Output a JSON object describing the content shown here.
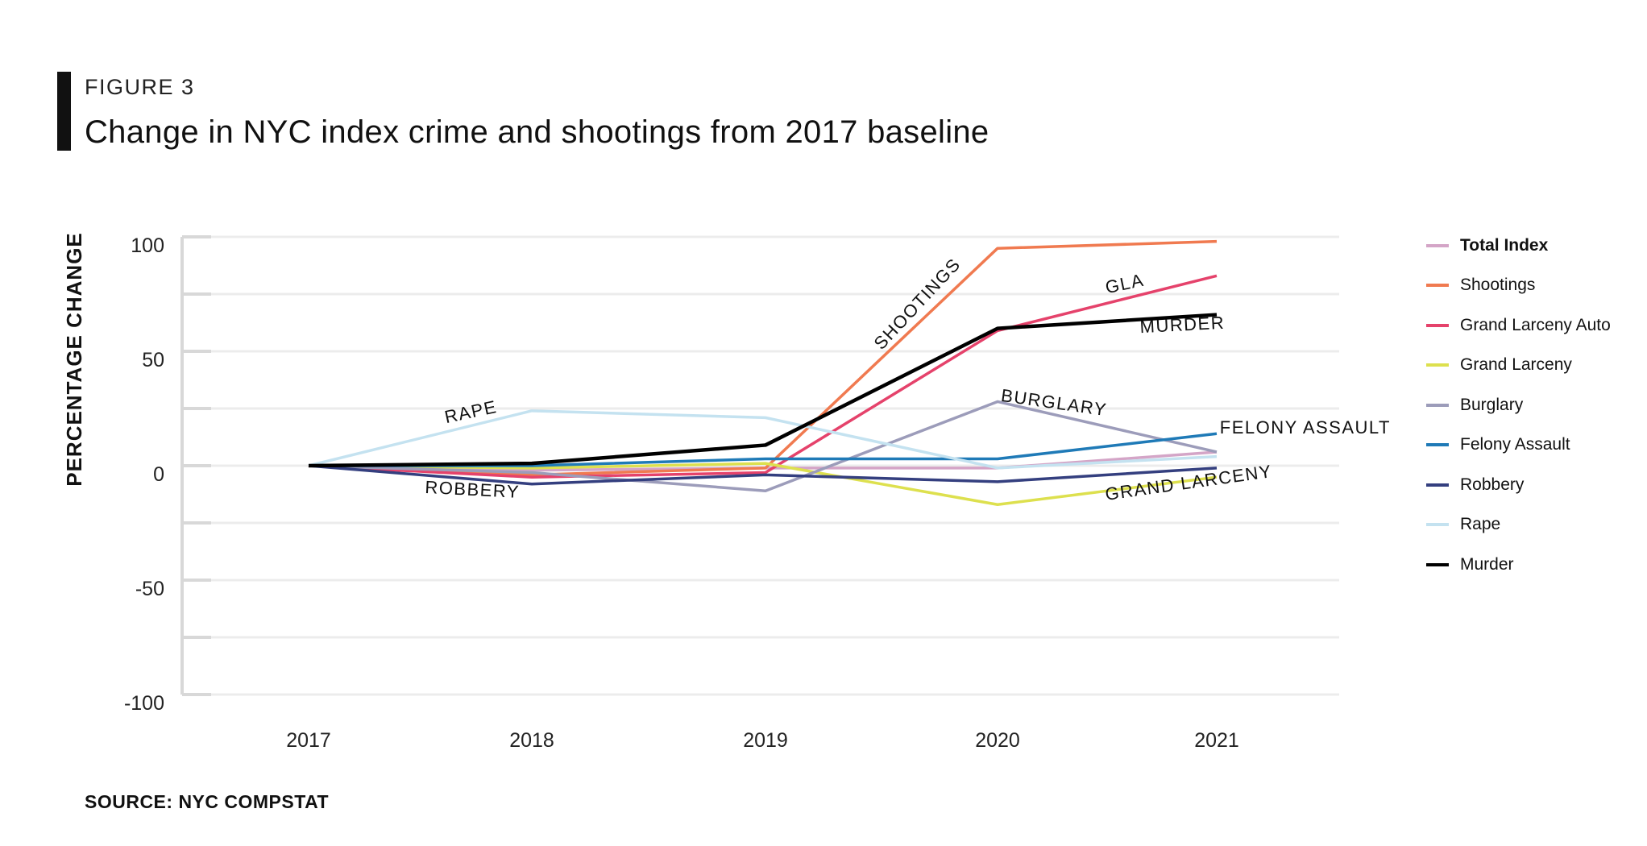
{
  "header": {
    "figure_label": "FIGURE 3",
    "title": "Change in NYC index crime and shootings from 2017 baseline"
  },
  "source": "SOURCE: NYC COMPSTAT",
  "chart_data": {
    "type": "line",
    "title": "Change in NYC index crime and shootings from 2017 baseline",
    "xlabel": "",
    "ylabel": "PERCENTAGE CHANGE",
    "x": [
      "2017",
      "2018",
      "2019",
      "2020",
      "2021"
    ],
    "ylim": [
      -100,
      100
    ],
    "yticks": [
      "100",
      "50",
      "0",
      "-50",
      "-100"
    ],
    "ytick_values": [
      100,
      50,
      0,
      -50,
      -100
    ],
    "grid": true,
    "legend_position": "right",
    "series": [
      {
        "name": "Total Index",
        "color": "#d4a5c7",
        "bold": true,
        "values": [
          0,
          -2,
          -1,
          -1,
          6
        ]
      },
      {
        "name": "Shootings",
        "color": "#f07a50",
        "values": [
          0,
          -4,
          -1,
          95,
          98
        ]
      },
      {
        "name": "Grand Larceny Auto",
        "color": "#e5426b",
        "values": [
          0,
          -5,
          -3,
          59,
          83
        ]
      },
      {
        "name": "Grand Larceny",
        "color": "#dde04e",
        "values": [
          0,
          -1,
          1,
          -17,
          -5
        ]
      },
      {
        "name": "Burglary",
        "color": "#9c9cba",
        "values": [
          0,
          -3,
          -11,
          28,
          6
        ]
      },
      {
        "name": "Felony Assault",
        "color": "#1f7ab7",
        "values": [
          0,
          0,
          3,
          3,
          14
        ]
      },
      {
        "name": "Robbery",
        "color": "#343f7f",
        "values": [
          0,
          -8,
          -4,
          -7,
          -1
        ]
      },
      {
        "name": "Rape",
        "color": "#c4e2f0",
        "values": [
          0,
          24,
          21,
          -1,
          4
        ]
      },
      {
        "name": "Murder",
        "color": "#000000",
        "values": [
          0,
          1,
          9,
          60,
          66
        ]
      }
    ],
    "annotations": [
      {
        "text": "SHOOTINGS",
        "x": 2019.7,
        "y": 69,
        "angle": -47
      },
      {
        "text": "GLA",
        "x": 2020.6,
        "y": 77,
        "angle": -12
      },
      {
        "text": "MURDER",
        "x": 2020.85,
        "y": 59,
        "angle": -3
      },
      {
        "text": "BURGLARY",
        "x": 2020.28,
        "y": 25,
        "angle": 8
      },
      {
        "text": "FELONY ASSAULT",
        "x": 2021.39,
        "y": 14,
        "angle": 0
      },
      {
        "text": "GRAND LARCENY",
        "x": 2020.88,
        "y": -10,
        "angle": -8
      },
      {
        "text": "RAPE",
        "x": 2017.72,
        "y": 21,
        "angle": -12
      },
      {
        "text": "ROBBERY",
        "x": 2017.72,
        "y": -13,
        "angle": 3
      }
    ]
  }
}
